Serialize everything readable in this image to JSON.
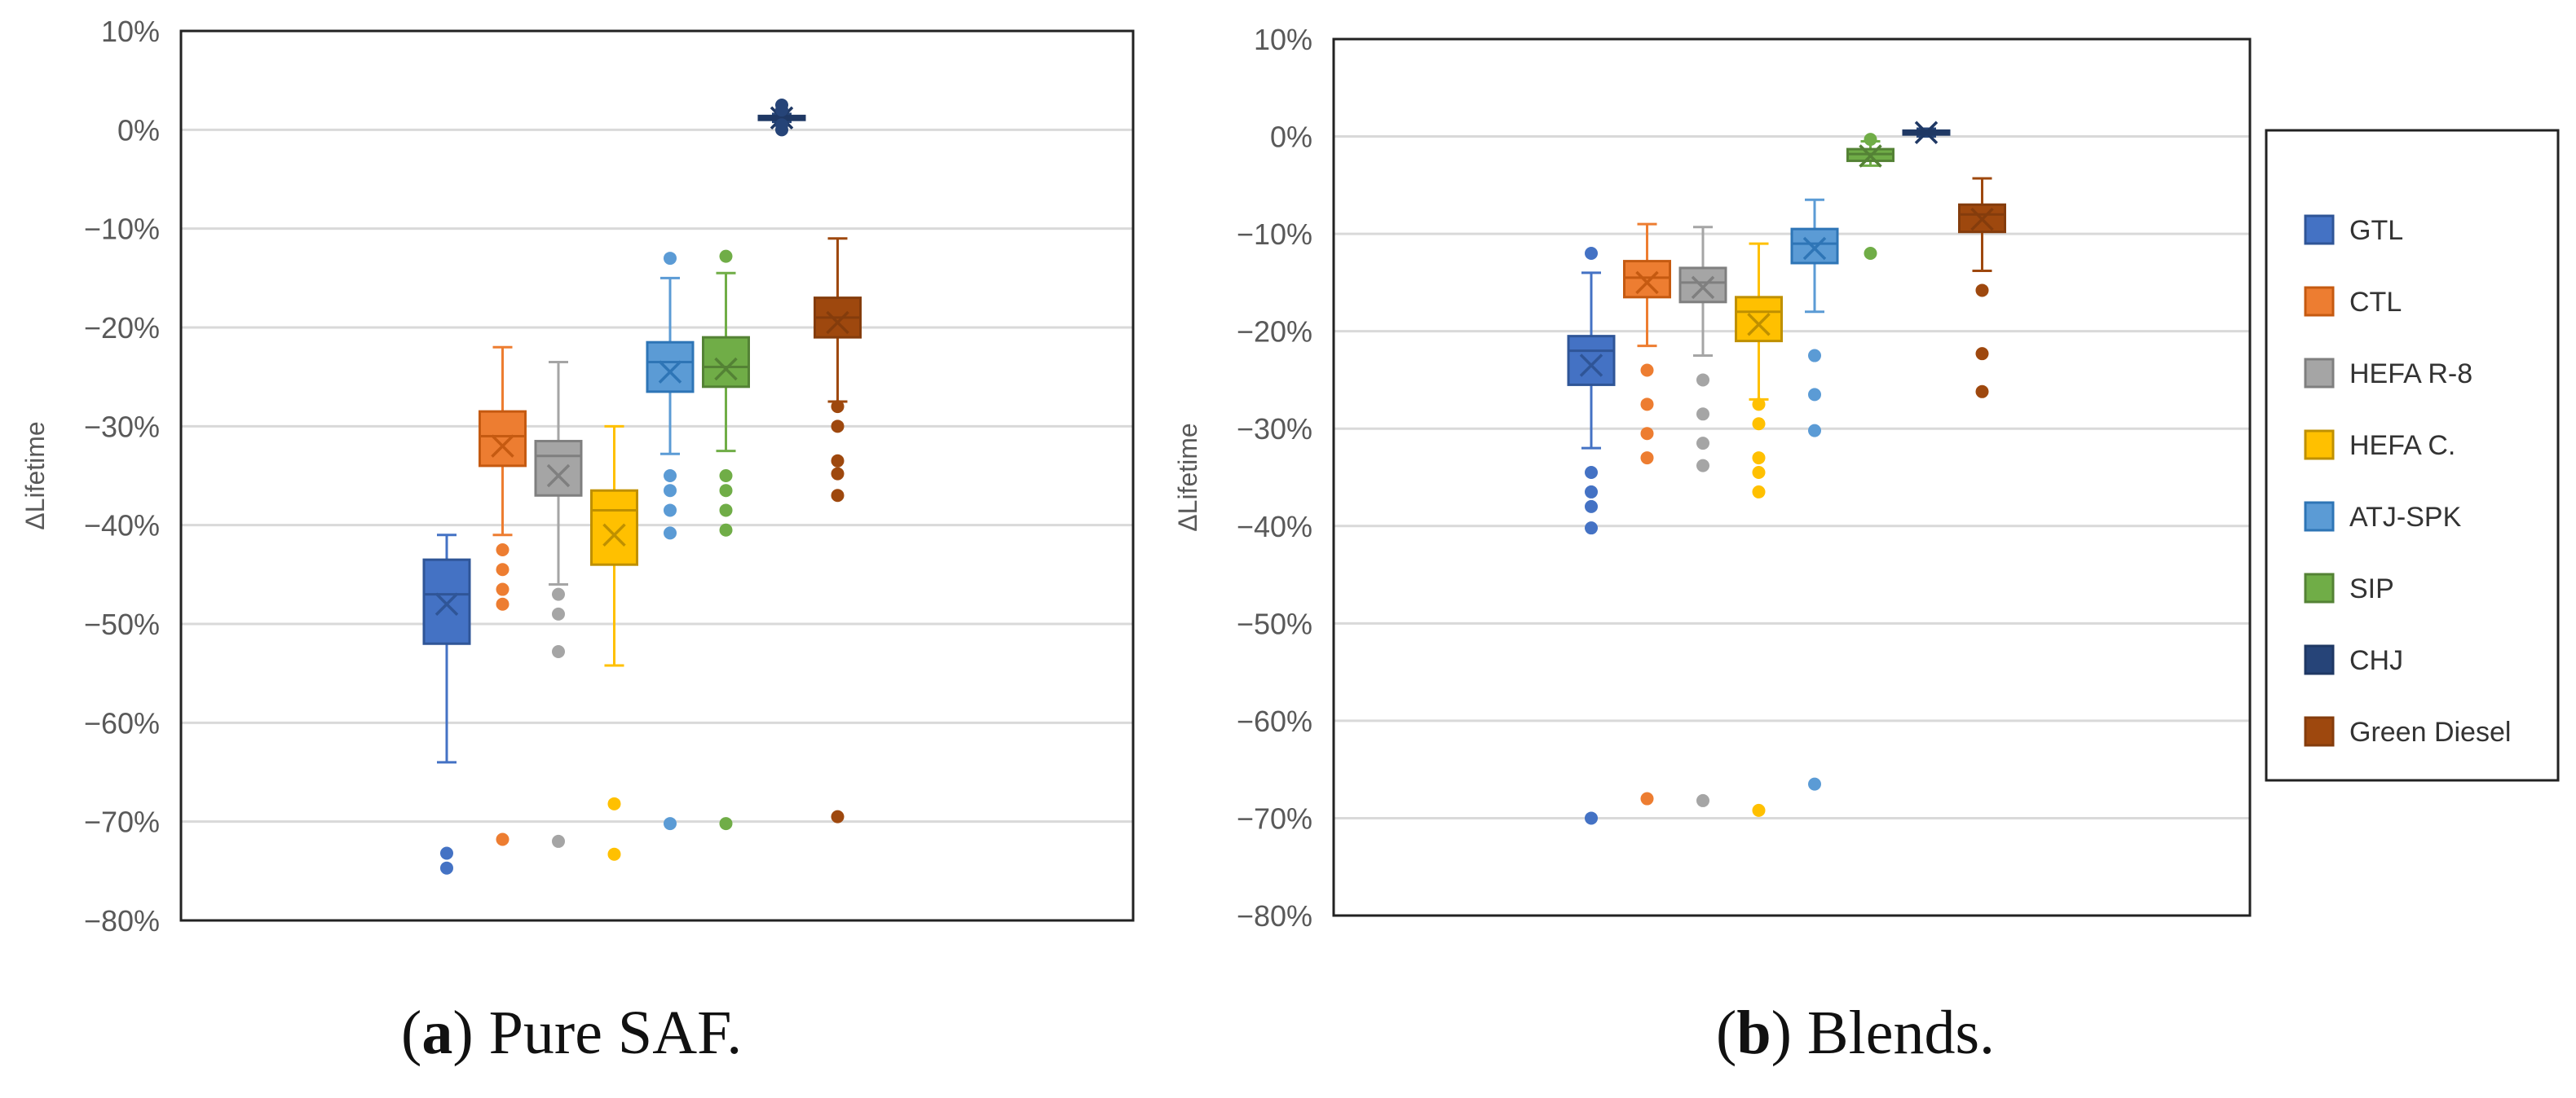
{
  "chart_data": [
    {
      "type": "box",
      "ylabel": "ΔLifetime",
      "ylim": [
        -80,
        10
      ],
      "ytick_step": 10,
      "ytick_suffix": "%",
      "grid": true,
      "series": [
        {
          "name": "GTL",
          "q1": -52,
          "median": -47,
          "q3": -43.5,
          "mean": -48,
          "whisker_low": -64,
          "whisker_high": -41,
          "outliers": [
            -73.2,
            -74.7
          ]
        },
        {
          "name": "CTL",
          "q1": -34,
          "median": -31,
          "q3": -28.5,
          "mean": -32,
          "whisker_low": -41,
          "whisker_high": -22,
          "outliers": [
            -42.5,
            -44.5,
            -46.5,
            -48,
            -71.8
          ]
        },
        {
          "name": "HEFA R-8",
          "q1": -37,
          "median": -33,
          "q3": -31.5,
          "mean": -35,
          "whisker_low": -46,
          "whisker_high": -23.5,
          "outliers": [
            -47,
            -49,
            -52.8,
            -72
          ]
        },
        {
          "name": "HEFA C.",
          "q1": -44,
          "median": -38.5,
          "q3": -36.5,
          "mean": -41,
          "whisker_low": -54.2,
          "whisker_high": -30,
          "outliers": [
            -68.2,
            -73.3
          ]
        },
        {
          "name": "ATJ-SPK",
          "q1": -26.5,
          "median": -23.5,
          "q3": -21.5,
          "mean": -24.5,
          "whisker_low": -32.8,
          "whisker_high": -15,
          "outliers": [
            -13,
            -35,
            -36.5,
            -38.5,
            -40.8,
            -70.2
          ]
        },
        {
          "name": "SIP",
          "q1": -26,
          "median": -24,
          "q3": -21,
          "mean": -24.2,
          "whisker_low": -32.5,
          "whisker_high": -14.5,
          "outliers": [
            -12.8,
            -35,
            -36.5,
            -38.5,
            -40.5,
            -70.2
          ]
        },
        {
          "name": "CHJ",
          "q1": 1,
          "median": 1.2,
          "q3": 1.4,
          "mean": 1.2,
          "whisker_low": 0.8,
          "whisker_high": 1.6,
          "outliers": [
            0,
            0.5,
            2,
            2.5
          ]
        },
        {
          "name": "Green Diesel",
          "q1": -21,
          "median": -19,
          "q3": -17,
          "mean": -19.5,
          "whisker_low": -27.5,
          "whisker_high": -11,
          "outliers": [
            -28,
            -30,
            -33.5,
            -34.8,
            -37,
            -69.5
          ]
        }
      ]
    },
    {
      "type": "box",
      "ylabel": "ΔLifetime",
      "ylim": [
        -80,
        10
      ],
      "ytick_step": 10,
      "ytick_suffix": "%",
      "grid": true,
      "series": [
        {
          "name": "GTL",
          "q1": -25.5,
          "median": -22,
          "q3": -20.5,
          "mean": -23.5,
          "whisker_low": -32,
          "whisker_high": -14,
          "outliers": [
            -12,
            -34.5,
            -36.5,
            -38,
            -40.2,
            -70
          ]
        },
        {
          "name": "CTL",
          "q1": -16.5,
          "median": -14.5,
          "q3": -12.8,
          "mean": -15,
          "whisker_low": -21.5,
          "whisker_high": -9,
          "outliers": [
            -24,
            -27.5,
            -30.5,
            -33,
            -68
          ]
        },
        {
          "name": "HEFA R-8",
          "q1": -17,
          "median": -15,
          "q3": -13.5,
          "mean": -15.5,
          "whisker_low": -22.5,
          "whisker_high": -9.3,
          "outliers": [
            -25,
            -28.5,
            -31.5,
            -33.8,
            -68.2
          ]
        },
        {
          "name": "HEFA C.",
          "q1": -21,
          "median": -18,
          "q3": -16.5,
          "mean": -19.3,
          "whisker_low": -27,
          "whisker_high": -11,
          "outliers": [
            -27.5,
            -29.5,
            -33,
            -34.5,
            -36.5,
            -69.2
          ]
        },
        {
          "name": "ATJ-SPK",
          "q1": -13,
          "median": -11,
          "q3": -9.5,
          "mean": -11.5,
          "whisker_low": -18,
          "whisker_high": -6.5,
          "outliers": [
            -22.5,
            -26.5,
            -30.2,
            -66.5
          ]
        },
        {
          "name": "SIP",
          "q1": -2.5,
          "median": -1.8,
          "q3": -1.3,
          "mean": -2,
          "whisker_low": -3,
          "whisker_high": -0.5,
          "outliers": [
            -0.3,
            -12
          ]
        },
        {
          "name": "CHJ",
          "q1": 0.2,
          "median": 0.4,
          "q3": 0.6,
          "mean": 0.4,
          "whisker_low": 0,
          "whisker_high": 0.8,
          "outliers": []
        },
        {
          "name": "Green Diesel",
          "q1": -9.8,
          "median": -8,
          "q3": -7,
          "mean": -8.5,
          "whisker_low": -13.8,
          "whisker_high": -4.3,
          "outliers": [
            -15.8,
            -22.3,
            -26.2
          ]
        }
      ]
    }
  ],
  "legend": {
    "items": [
      {
        "name": "GTL",
        "fill": "#4472c4",
        "line": "#2f5597"
      },
      {
        "name": "CTL",
        "fill": "#ed7d31",
        "line": "#c55a11"
      },
      {
        "name": "HEFA R-8",
        "fill": "#a5a5a5",
        "line": "#7f7f7f"
      },
      {
        "name": "HEFA C.",
        "fill": "#ffc000",
        "line": "#bf9000"
      },
      {
        "name": "ATJ-SPK",
        "fill": "#5b9bd5",
        "line": "#2e75b6"
      },
      {
        "name": "SIP",
        "fill": "#70ad47",
        "line": "#548235"
      },
      {
        "name": "CHJ",
        "fill": "#264478",
        "line": "#1f3864"
      },
      {
        "name": "Green Diesel",
        "fill": "#9e480e",
        "line": "#843c0c"
      }
    ]
  },
  "captions": {
    "a_label": "a",
    "a_text": " Pure SAF.",
    "b_label": "b",
    "b_text": " Blends."
  },
  "colors": {
    "axis": "#222222",
    "grid": "#d9d9d9",
    "tick_text": "#595959"
  }
}
